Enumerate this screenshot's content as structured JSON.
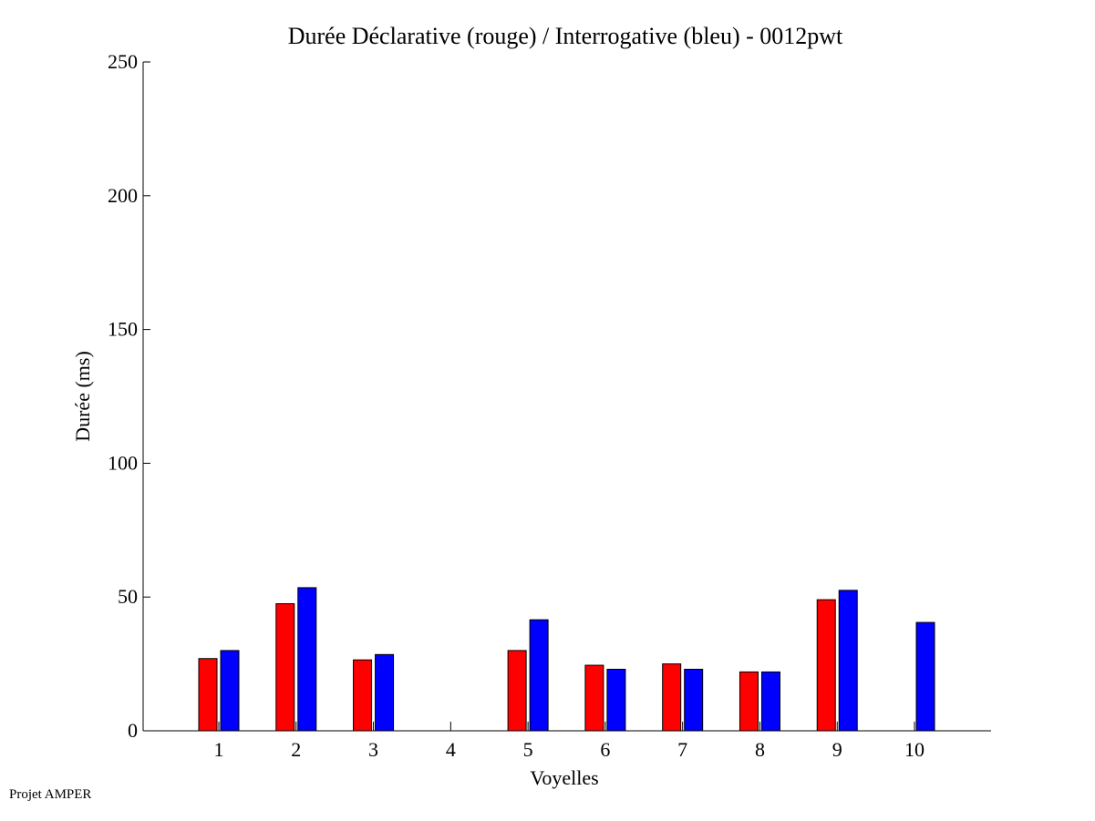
{
  "footer": {
    "credit": "Projet AMPER"
  },
  "chart_data": {
    "type": "bar",
    "title": "Durée Déclarative (rouge) / Interrogative (bleu) - 0012pwt",
    "xlabel": "Voyelles",
    "ylabel": "Durée (ms)",
    "ylim": [
      0,
      250
    ],
    "yticks": [
      0,
      50,
      100,
      150,
      200,
      250
    ],
    "categories": [
      "1",
      "2",
      "3",
      "4",
      "5",
      "6",
      "7",
      "8",
      "9",
      "10"
    ],
    "grid": false,
    "series": [
      {
        "color": "#ff0000",
        "values": [
          27,
          47.5,
          26.5,
          0,
          30,
          24.5,
          25,
          22,
          49,
          0
        ]
      },
      {
        "color": "#0000ff",
        "values": [
          30,
          53.5,
          28.5,
          0,
          41.5,
          23,
          23,
          22,
          52.5,
          40.5
        ]
      }
    ]
  }
}
